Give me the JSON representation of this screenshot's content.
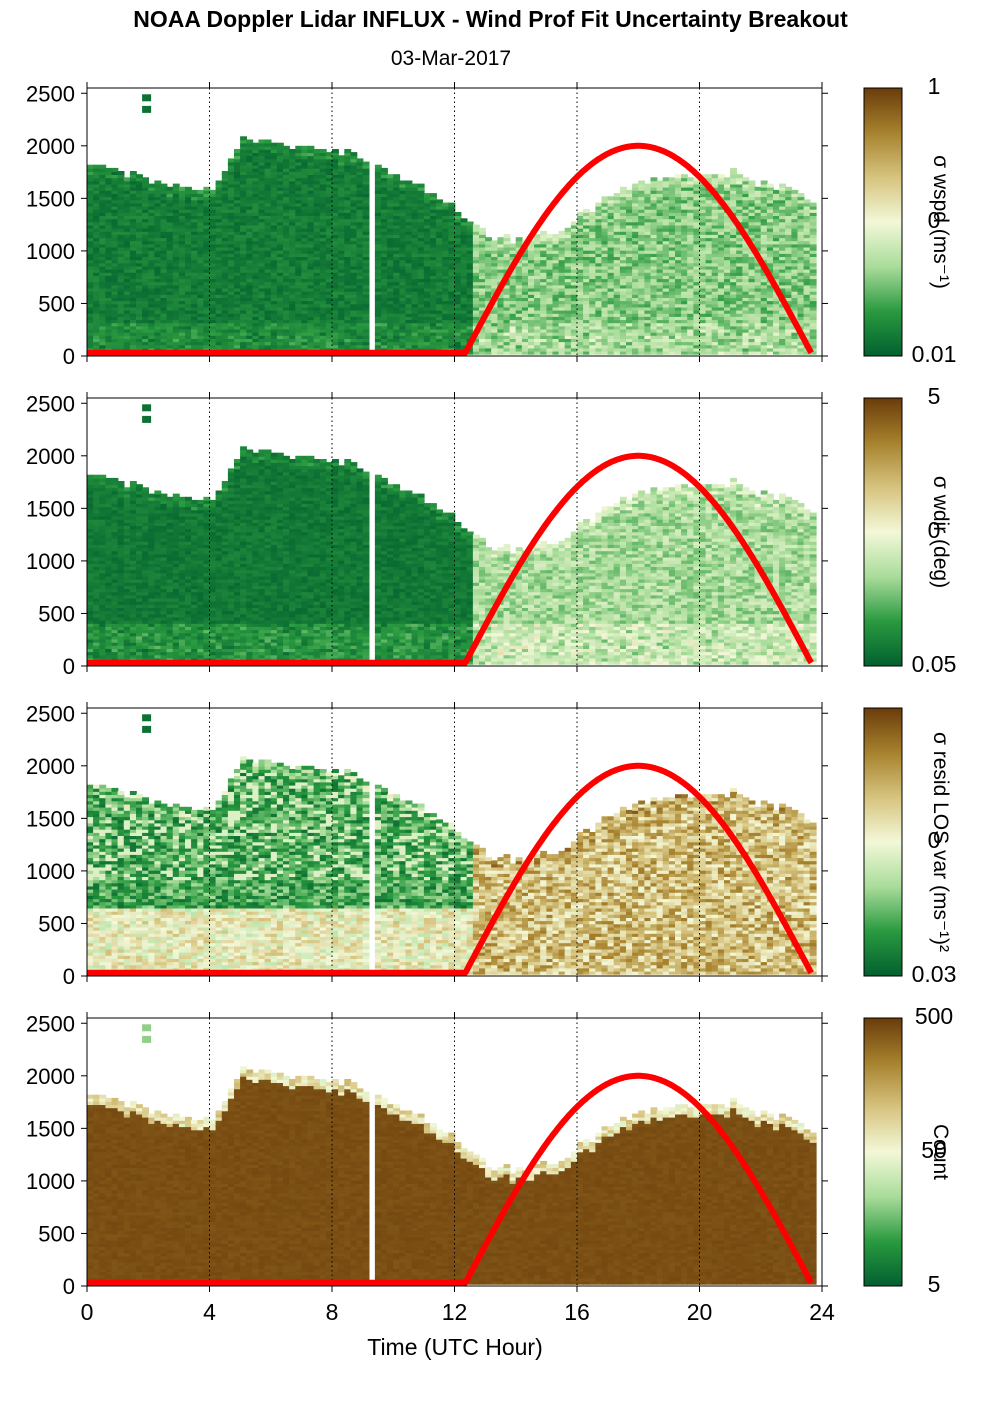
{
  "figure": {
    "title": "NOAA Doppler Lidar INFLUX - Wind Prof Fit Uncertainty Breakout",
    "date": "03-Mar-2017",
    "xlabel": "Time (UTC Hour)"
  },
  "colors": {
    "colormap": [
      "#02602f",
      "#2a9a40",
      "#a9dc9a",
      "#f3f8d8",
      "#d6c37e",
      "#a7822e",
      "#6a3c0a"
    ],
    "sun_curve": "#ff0000",
    "axis": "#000000"
  },
  "chart_data": [
    {
      "type": "heatmap",
      "name": "sigma wspd",
      "colorbar_label": "σ wspd (ms⁻¹)",
      "colorbar_ticks": [
        "1",
        "0",
        "0.01"
      ],
      "x": {
        "range": [
          0,
          24
        ],
        "ticks": [
          0,
          4,
          8,
          12,
          16,
          20,
          24
        ],
        "grid": "dotted"
      },
      "y": {
        "range": [
          0,
          2550
        ],
        "ticks": [
          0,
          500,
          1000,
          1500,
          2000,
          2500
        ]
      },
      "cloud_top_m": {
        "hours": [
          0,
          1,
          2,
          3,
          4,
          5,
          6,
          7,
          8,
          9,
          10,
          11,
          12,
          13,
          14,
          15,
          16,
          17,
          18,
          19,
          20,
          21,
          22,
          23,
          23.7
        ],
        "heights": [
          1830,
          1750,
          1650,
          1580,
          1560,
          2080,
          2000,
          1970,
          1960,
          1870,
          1680,
          1560,
          1380,
          1130,
          1080,
          1150,
          1320,
          1520,
          1640,
          1720,
          1680,
          1730,
          1620,
          1550,
          1450
        ]
      },
      "overlay_sun_peak_m": 2000
    },
    {
      "type": "heatmap",
      "name": "sigma wdir",
      "colorbar_label": "σ wdir (deg)",
      "colorbar_ticks": [
        "5",
        "0",
        "0.05"
      ],
      "x": {
        "range": [
          0,
          24
        ],
        "ticks": [
          0,
          4,
          8,
          12,
          16,
          20,
          24
        ],
        "grid": "dotted"
      },
      "y": {
        "range": [
          0,
          2550
        ],
        "ticks": [
          0,
          500,
          1000,
          1500,
          2000,
          2500
        ]
      },
      "overlay_sun_peak_m": 2000
    },
    {
      "type": "heatmap",
      "name": "sigma resid LOS var",
      "colorbar_label": "σ resid LOS var (ms⁻¹)²",
      "colorbar_ticks": [
        "0",
        "0.03"
      ],
      "x": {
        "range": [
          0,
          24
        ],
        "ticks": [
          0,
          4,
          8,
          12,
          16,
          20,
          24
        ],
        "grid": "dotted"
      },
      "y": {
        "range": [
          0,
          2550
        ],
        "ticks": [
          0,
          500,
          1000,
          1500,
          2000,
          2500
        ]
      },
      "overlay_sun_peak_m": 2000
    },
    {
      "type": "heatmap",
      "name": "count",
      "colorbar_label": "Count",
      "colorbar_ticks": [
        "500",
        "50",
        "5"
      ],
      "x": {
        "range": [
          0,
          24
        ],
        "ticks": [
          0,
          4,
          8,
          12,
          16,
          20,
          24
        ],
        "grid": "dotted"
      },
      "y": {
        "range": [
          0,
          2550
        ],
        "ticks": [
          0,
          500,
          1000,
          1500,
          2000,
          2500
        ]
      },
      "overlay_sun_peak_m": 2000
    }
  ]
}
